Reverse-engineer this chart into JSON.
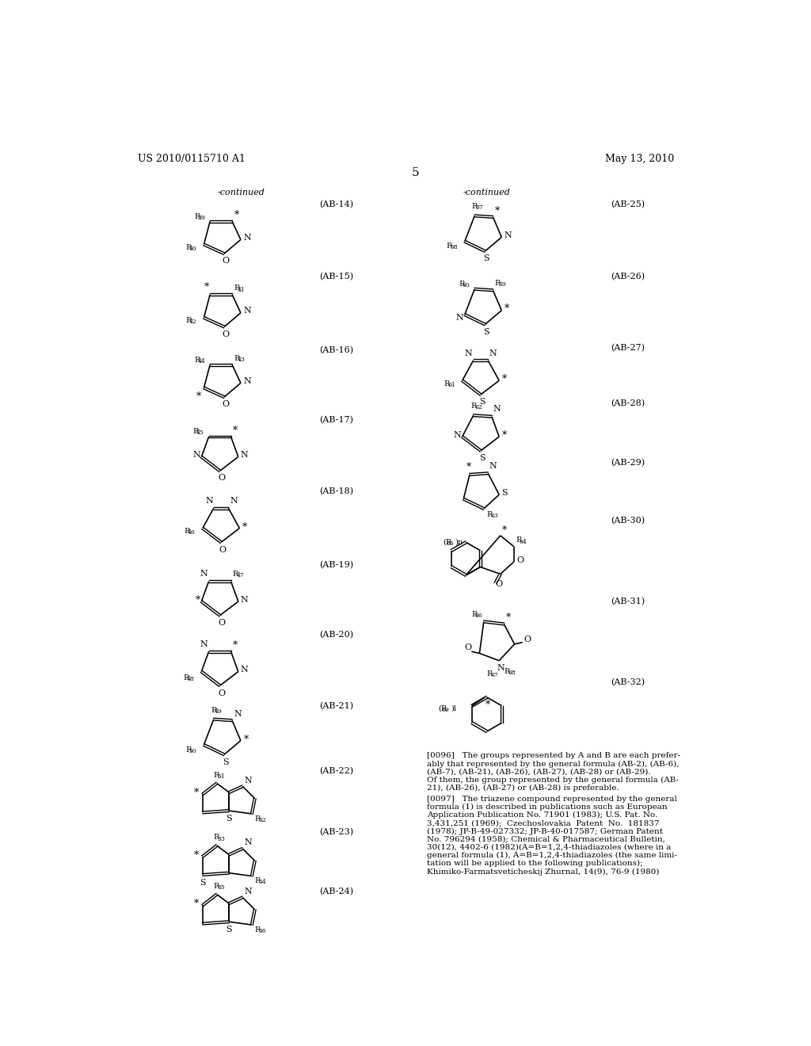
{
  "page_header_left": "US 2010/0115710 A1",
  "page_header_right": "May 13, 2010",
  "page_number": "5",
  "continued_left": "-continued",
  "continued_right": "-continued",
  "background_color": "#ffffff",
  "text_color": "#000000",
  "para1": [
    "[0096]   The groups represented by A and B are each prefer-",
    "ably that represented by the general formula (AB-2), (AB-6),",
    "(AB-7), (AB-21), (AB-26), (AB-27), (AB-28) or (AB-29).",
    "Of them, the group represented by the general formula (AB-",
    "21), (AB-26), (AB-27) or (AB-28) is preferable."
  ],
  "para2": [
    "[0097]   The triazene compound represented by the general",
    "formula (1) is described in publications such as European",
    "Application Publication No. 71901 (1983); U.S. Pat. No.",
    "3,431,251 (1969);  Czechoslovakia  Patent  No.  181837",
    "(1978); JP-B-49-027332; JP-B-40-017587; German Patent",
    "No. 796294 (1958); Chemical & Pharmaceutical Bulletin,",
    "30(12), 4402-6 (1982)(A=B=1,2,4-thiadiazoles (where in a",
    "general formula (1), A=B=1,2,4-thiadiazoles (the same limi-",
    "tation will be applied to the following publications);",
    "Khimiko-Farmatsveticheskij Zhurnal, 14(9), 76-9 (1980)"
  ]
}
